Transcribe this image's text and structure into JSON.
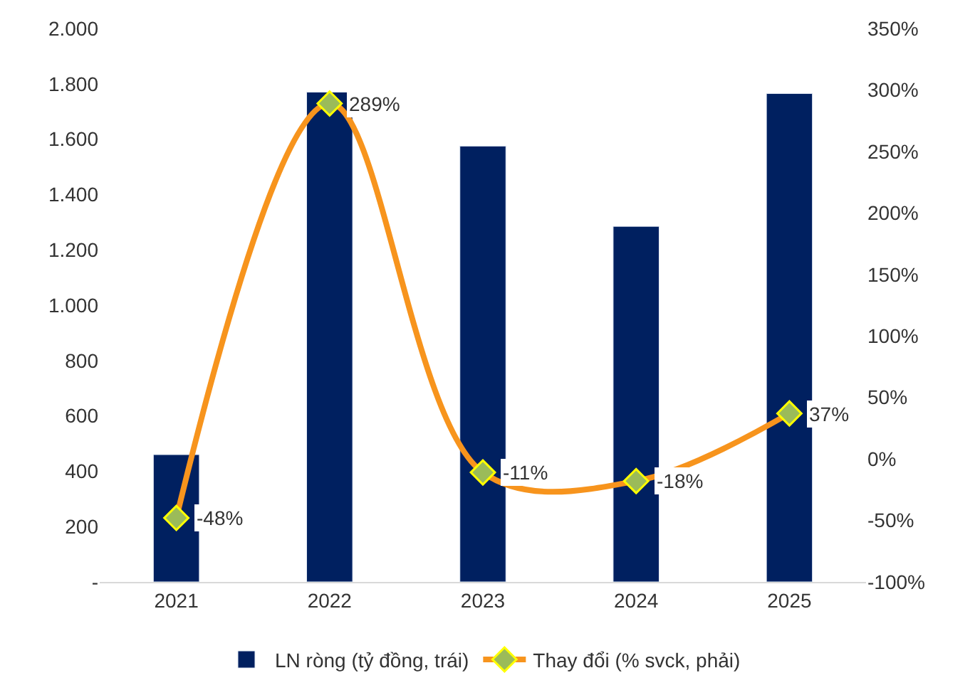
{
  "chart_data": {
    "type": "bar",
    "categories": [
      "2021",
      "2022",
      "2023",
      "2024",
      "2025"
    ],
    "series": [
      {
        "name": "LN ròng (tỷ đồng, trái)",
        "color": "#002060",
        "values": [
          460,
          1770,
          1575,
          1285,
          1765
        ]
      },
      {
        "name": "Thay đổi (% svck, phải)",
        "type": "line",
        "axis": "y2",
        "color": "#f7941d",
        "marker": "diamond",
        "line_style": "solid",
        "values": [
          -48,
          289,
          -11,
          -18,
          37
        ],
        "value_labels": [
          "-48%",
          "289%",
          "-11%",
          "-18%",
          "37%"
        ]
      }
    ],
    "ylim": [
      0,
      2000
    ],
    "yticks": [
      {
        "value": 0,
        "label": "-"
      },
      200,
      400,
      600,
      800,
      {
        "value": 1000,
        "label": "1.000"
      },
      {
        "value": 1200,
        "label": "1.200"
      },
      {
        "value": 1400,
        "label": "1.400"
      },
      {
        "value": 1600,
        "label": "1.600"
      },
      {
        "value": 1800,
        "label": "1.800"
      },
      {
        "value": 2000,
        "label": "2.000"
      }
    ],
    "y2lim": [
      -100,
      350
    ],
    "y2ticks": [
      {
        "value": -100,
        "label": "-100%"
      },
      {
        "value": -50,
        "label": "-50%"
      },
      {
        "value": 0,
        "label": "0%"
      },
      {
        "value": 50,
        "label": "50%"
      },
      {
        "value": 100,
        "label": "100%"
      },
      {
        "value": 150,
        "label": "150%"
      },
      {
        "value": 200,
        "label": "200%"
      },
      {
        "value": 250,
        "label": "250%"
      },
      {
        "value": 300,
        "label": "300%"
      },
      {
        "value": 350,
        "label": "350%"
      }
    ],
    "legend": "bottom"
  }
}
